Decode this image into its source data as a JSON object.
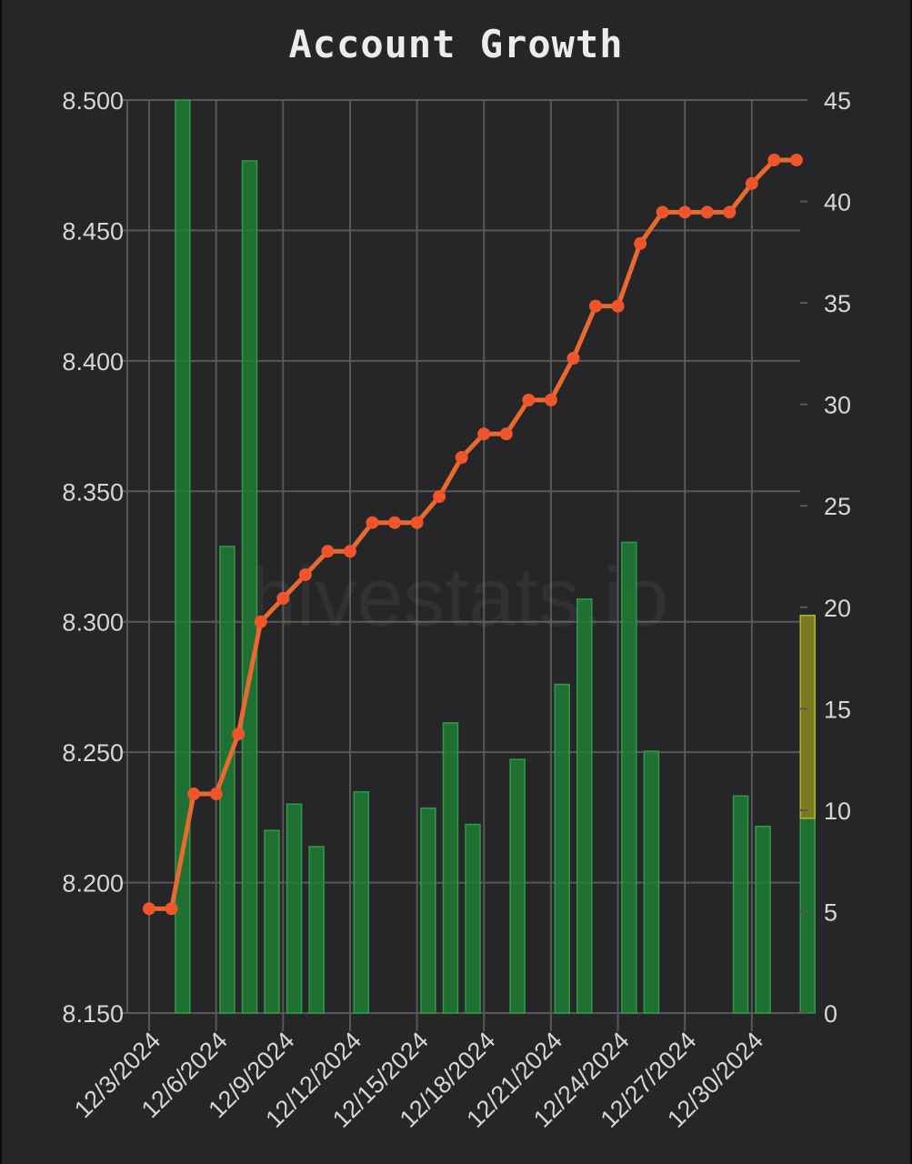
{
  "chart_data": {
    "type": "bar",
    "title": "Account Growth",
    "watermark": "hivestats.io",
    "x": [
      "12/3/2024",
      "12/4/2024",
      "12/5/2024",
      "12/6/2024",
      "12/7/2024",
      "12/8/2024",
      "12/9/2024",
      "12/10/2024",
      "12/11/2024",
      "12/12/2024",
      "12/13/2024",
      "12/14/2024",
      "12/15/2024",
      "12/16/2024",
      "12/17/2024",
      "12/18/2024",
      "12/19/2024",
      "12/20/2024",
      "12/21/2024",
      "12/22/2024",
      "12/23/2024",
      "12/24/2024",
      "12/25/2024",
      "12/26/2024",
      "12/27/2024",
      "12/28/2024",
      "12/29/2024",
      "12/30/2024",
      "12/31/2024",
      "1/1/2025"
    ],
    "x_tick_labels": [
      "12/3/2024",
      "12/6/2024",
      "12/9/2024",
      "12/12/2024",
      "12/15/2024",
      "12/18/2024",
      "12/21/2024",
      "12/24/2024",
      "12/27/2024",
      "12/30/2024"
    ],
    "left_axis": {
      "ylim": [
        8.15,
        8.5
      ],
      "ticks": [
        "8.500",
        "8.450",
        "8.400",
        "8.350",
        "8.300",
        "8.250",
        "8.200",
        "8.150"
      ]
    },
    "right_axis": {
      "ylim": [
        0,
        45
      ],
      "ticks": [
        "45",
        "40",
        "35",
        "30",
        "25",
        "20",
        "15",
        "10",
        "5",
        "0"
      ]
    },
    "series": [
      {
        "type": "line",
        "axis": "left",
        "color": "#e86a2e",
        "marker_color": "#f0542a",
        "values": [
          8.19,
          8.19,
          8.234,
          8.234,
          8.257,
          8.3,
          8.309,
          8.318,
          8.327,
          8.327,
          8.338,
          8.338,
          8.338,
          8.348,
          8.363,
          8.372,
          8.372,
          8.385,
          8.385,
          8.401,
          8.421,
          8.421,
          8.445,
          8.457,
          8.457,
          8.457,
          8.457,
          8.468,
          8.477,
          8.477
        ]
      },
      {
        "type": "bar",
        "axis": "right",
        "color": "#1e7e34",
        "values": [
          0,
          45,
          0,
          23,
          42,
          9,
          10.3,
          8.2,
          0,
          10.9,
          0,
          0,
          10.1,
          14.3,
          9.3,
          0,
          12.5,
          0,
          16.2,
          20.4,
          0,
          23.2,
          12.9,
          0,
          0,
          0,
          10.7,
          9.2,
          0,
          9.6
        ]
      },
      {
        "type": "bar",
        "axis": "right",
        "stacked": true,
        "color": "#8a8a1e",
        "values": [
          0,
          0,
          0,
          0,
          0,
          0,
          0,
          0,
          0,
          0,
          0,
          0,
          0,
          0,
          0,
          0,
          0,
          0,
          0,
          0,
          0,
          0,
          0,
          0,
          0,
          0,
          0,
          0,
          0,
          10
        ]
      }
    ],
    "grid": true,
    "legend": "none"
  }
}
